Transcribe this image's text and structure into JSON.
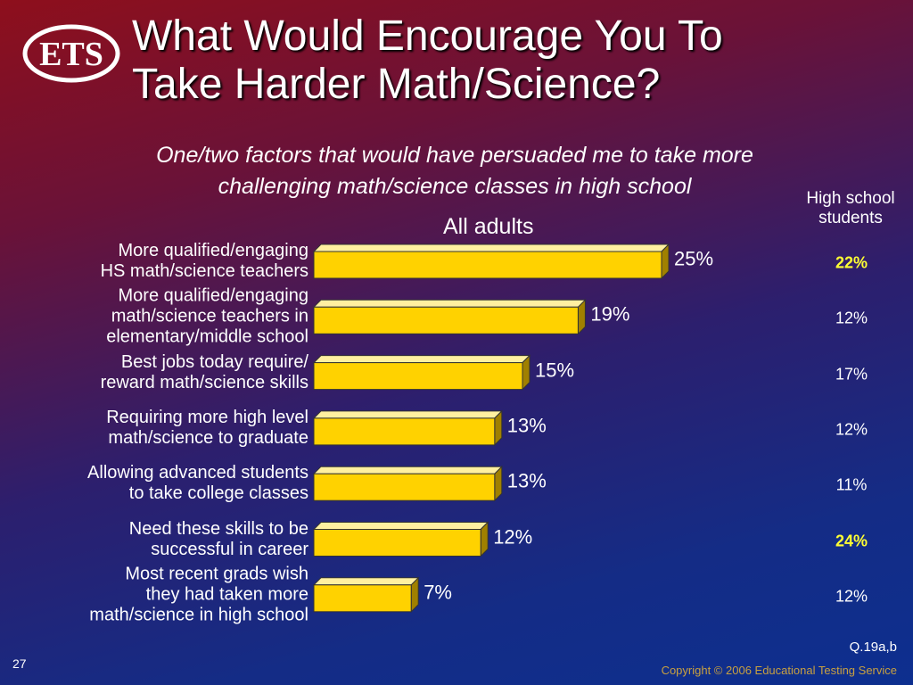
{
  "logo": "ETS",
  "chart_data": {
    "type": "bar",
    "orientation": "horizontal",
    "title": "What Would Encourage You To\nTake Harder Math/Science?",
    "subtitle": "One/two factors that would have persuaded me to take more\nchallenging math/science classes in high school",
    "categories": [
      "More qualified/engaging\nHS math/science teachers",
      "More qualified/engaging\nmath/science teachers in\nelementary/middle school",
      "Best jobs today require/\nreward math/science skills",
      "Requiring more high level\nmath/science to graduate",
      "Allowing advanced students\nto take college classes",
      "Need these skills to be\nsuccessful in career",
      "Most recent grads wish\nthey had taken more\nmath/science in high school"
    ],
    "series": [
      {
        "name": "All adults",
        "color": "#ffd200",
        "values": [
          25,
          19,
          15,
          13,
          13,
          12,
          7
        ],
        "value_labels": [
          "25%",
          "19%",
          "15%",
          "13%",
          "13%",
          "12%",
          "7%"
        ]
      },
      {
        "name": "High school\nstudents",
        "highlight_color": "#ffff33",
        "values": [
          22,
          12,
          17,
          12,
          11,
          24,
          12
        ],
        "value_labels": [
          "22%",
          "12%",
          "17%",
          "12%",
          "11%",
          "24%",
          "12%"
        ],
        "highlighted": [
          true,
          false,
          false,
          false,
          false,
          true,
          false
        ]
      }
    ],
    "source_note": "Q.19a,b",
    "page_number": "27",
    "copyright": "Copyright © 2006 Educational Testing Service"
  }
}
